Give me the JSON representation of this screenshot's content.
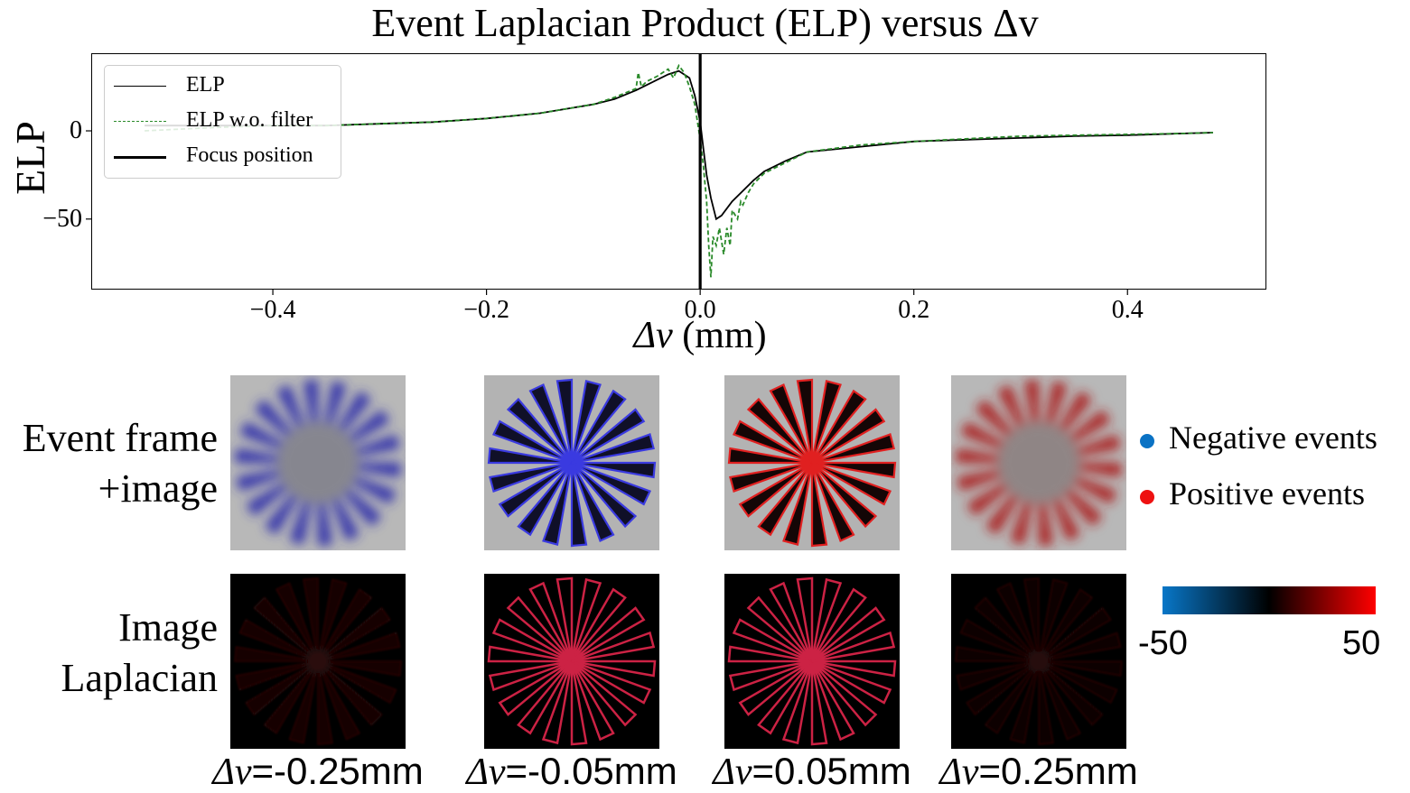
{
  "chart_data": {
    "type": "line",
    "title": "Event Laplacian Product (ELP) versus Δv",
    "xlabel": "Δv (mm)",
    "ylabel": "ELP",
    "xlim": [
      -0.57,
      0.53
    ],
    "ylim": [
      -90,
      44
    ],
    "xticks": [
      -0.4,
      -0.2,
      0.0,
      0.2,
      0.4
    ],
    "xtick_labels": [
      "−0.4",
      "−0.2",
      "0.0",
      "0.2",
      "0.4"
    ],
    "yticks": [
      0,
      -50
    ],
    "ytick_labels": [
      "0",
      "−50"
    ],
    "grid": false,
    "legend_position": "top-left",
    "focus_position": 0.0,
    "series": [
      {
        "name": "ELP",
        "color": "#000000",
        "style": "solid",
        "x": [
          -0.52,
          -0.45,
          -0.4,
          -0.35,
          -0.3,
          -0.25,
          -0.2,
          -0.15,
          -0.12,
          -0.1,
          -0.08,
          -0.06,
          -0.05,
          -0.04,
          -0.03,
          -0.02,
          -0.01,
          -0.005,
          0.0,
          0.003,
          0.006,
          0.01,
          0.015,
          0.02,
          0.025,
          0.03,
          0.04,
          0.05,
          0.06,
          0.08,
          0.1,
          0.15,
          0.2,
          0.25,
          0.3,
          0.35,
          0.4,
          0.45,
          0.48
        ],
        "y": [
          3,
          3,
          3,
          3,
          4,
          5,
          7,
          10,
          13,
          15,
          18,
          23,
          26,
          29,
          32,
          34,
          30,
          20,
          5,
          -10,
          -25,
          -38,
          -50,
          -48,
          -44,
          -40,
          -34,
          -28,
          -23,
          -17,
          -12,
          -9,
          -6,
          -5,
          -4,
          -3,
          -2.5,
          -1.5,
          -1
        ]
      },
      {
        "name": "ELP w.o. filter",
        "color": "#2a8a2a",
        "style": "dashed",
        "x": [
          -0.52,
          -0.45,
          -0.4,
          -0.35,
          -0.3,
          -0.25,
          -0.2,
          -0.15,
          -0.12,
          -0.1,
          -0.08,
          -0.06,
          -0.058,
          -0.055,
          -0.05,
          -0.04,
          -0.03,
          -0.025,
          -0.02,
          -0.015,
          -0.01,
          -0.005,
          0.0,
          0.003,
          0.006,
          0.008,
          0.01,
          0.012,
          0.015,
          0.018,
          0.022,
          0.025,
          0.028,
          0.03,
          0.035,
          0.038,
          0.04,
          0.045,
          0.05,
          0.06,
          0.08,
          0.1,
          0.15,
          0.2,
          0.25,
          0.3,
          0.35,
          0.4,
          0.45,
          0.48
        ],
        "y": [
          0,
          2,
          3,
          3,
          4,
          5,
          7,
          10,
          13,
          15,
          19,
          24,
          33,
          25,
          28,
          31,
          35,
          30,
          37,
          33,
          25,
          15,
          -5,
          -20,
          -40,
          -65,
          -83,
          -60,
          -65,
          -55,
          -70,
          -55,
          -65,
          -45,
          -50,
          -40,
          -42,
          -35,
          -30,
          -24,
          -18,
          -12,
          -8,
          -6,
          -4.5,
          -3,
          -2.5,
          -2,
          -1.5,
          -1
        ]
      }
    ],
    "legend": [
      "ELP",
      "ELP w.o. filter",
      "Focus position"
    ]
  },
  "rows": {
    "event_label_line1": "Event frame",
    "event_label_line2": "+image",
    "laplacian_label_line1": "Image",
    "laplacian_label_line2": "Laplacian"
  },
  "columns": [
    {
      "prefix": "Δv",
      "value": "=-0.25mm"
    },
    {
      "prefix": "Δv",
      "value": "=-0.05mm"
    },
    {
      "prefix": "Δv",
      "value": "=0.05mm"
    },
    {
      "prefix": "Δv",
      "value": "=0.25mm"
    }
  ],
  "event_legend": {
    "negative": "Negative events",
    "positive": "Positive events",
    "negative_color": "#0a72c4",
    "positive_color": "#ee1111"
  },
  "colorbar": {
    "min_label": "-50",
    "max_label": "50",
    "colors": [
      "#0877c8",
      "#000000",
      "#ff0000"
    ]
  }
}
